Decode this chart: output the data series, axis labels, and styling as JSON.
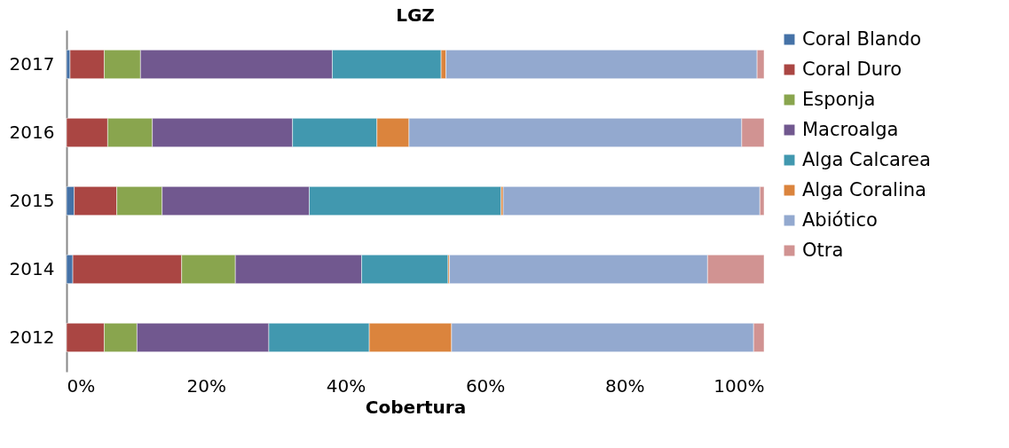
{
  "chart_data": {
    "type": "bar",
    "orientation": "horizontal",
    "stacked": true,
    "title": "LGZ",
    "xlabel": "Cobertura",
    "categories": [
      "2017",
      "2016",
      "2015",
      "2014",
      "2012"
    ],
    "xlim": [
      0,
      100
    ],
    "xticks": [
      {
        "value": 0,
        "label": "0%"
      },
      {
        "value": 20,
        "label": "20%"
      },
      {
        "value": 40,
        "label": "40%"
      },
      {
        "value": 60,
        "label": "60%"
      },
      {
        "value": 80,
        "label": "80%"
      },
      {
        "value": 100,
        "label": "100%"
      }
    ],
    "grid": false,
    "legend": "right",
    "series": [
      {
        "name": "Coral Blando",
        "color": "#4572a7",
        "values": [
          0.5,
          0,
          1.1,
          0.9,
          0
        ]
      },
      {
        "name": "Coral Duro",
        "color": "#aa4643",
        "values": [
          4.9,
          5.9,
          6.1,
          15.6,
          5.4
        ]
      },
      {
        "name": "Esponja",
        "color": "#89a54e",
        "values": [
          5.2,
          6.4,
          6.5,
          7.7,
          4.7
        ]
      },
      {
        "name": "Macroalga",
        "color": "#71588f",
        "values": [
          27.5,
          20.1,
          21.1,
          18.1,
          18.9
        ]
      },
      {
        "name": "Alga Calcarea",
        "color": "#4198af",
        "values": [
          15.6,
          12.1,
          27.5,
          12.4,
          14.4
        ]
      },
      {
        "name": "Alga Coralina",
        "color": "#db843d",
        "values": [
          0.7,
          4.6,
          0.3,
          0.2,
          11.8
        ]
      },
      {
        "name": "Abiótico",
        "color": "#93a9cf",
        "values": [
          44.6,
          47.7,
          36.8,
          37.0,
          43.3
        ]
      },
      {
        "name": "Otra",
        "color": "#d19392",
        "values": [
          1.0,
          3.2,
          0.6,
          8.1,
          1.5
        ]
      }
    ]
  }
}
